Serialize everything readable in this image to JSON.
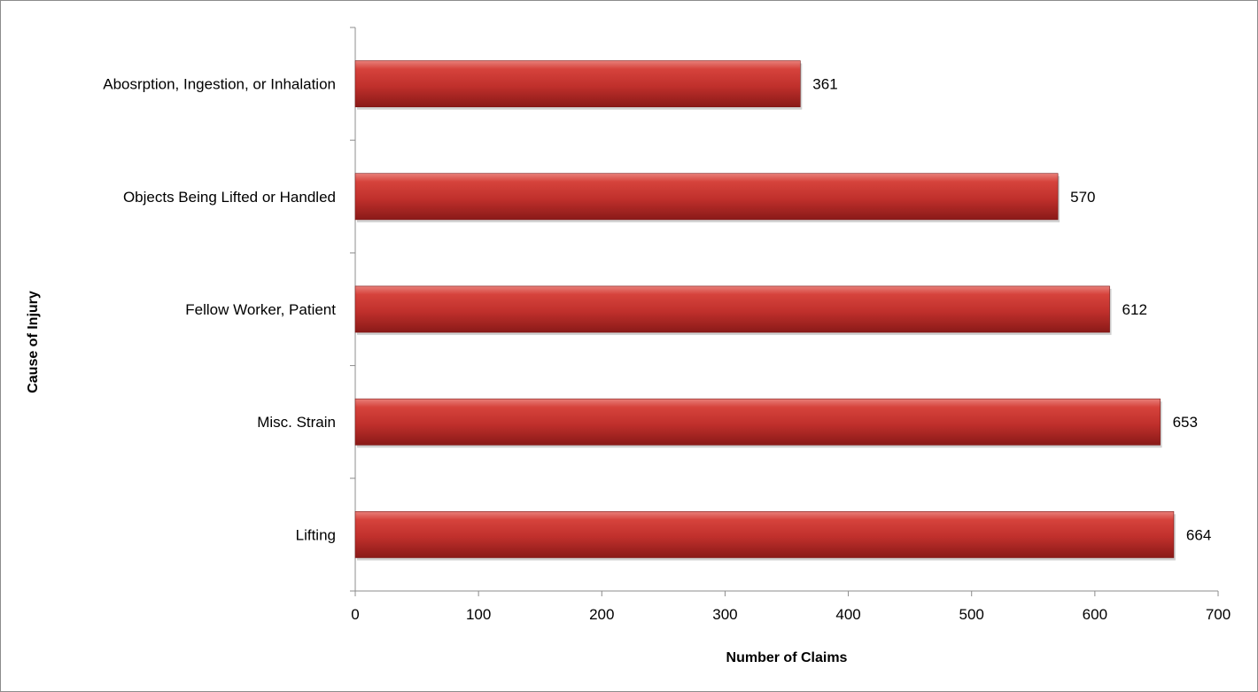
{
  "chart_data": {
    "type": "bar",
    "orientation": "horizontal",
    "categories": [
      "Abosrption, Ingestion, or Inhalation",
      "Objects Being Lifted or Handled",
      "Fellow Worker, Patient",
      "Misc. Strain",
      "Lifting"
    ],
    "values": [
      361,
      570,
      612,
      653,
      664
    ],
    "data_labels": [
      "361",
      "570",
      "612",
      "653",
      "664"
    ],
    "xlabel": "Number of Claims",
    "ylabel": "Cause of Injury",
    "xlim": [
      0,
      700
    ],
    "xticks": [
      0,
      100,
      200,
      300,
      400,
      500,
      600,
      700
    ],
    "xtick_labels": [
      "0",
      "100",
      "200",
      "300",
      "400",
      "500",
      "600",
      "700"
    ],
    "grid": false,
    "legend": "none",
    "bar_color": "#c0302c"
  }
}
